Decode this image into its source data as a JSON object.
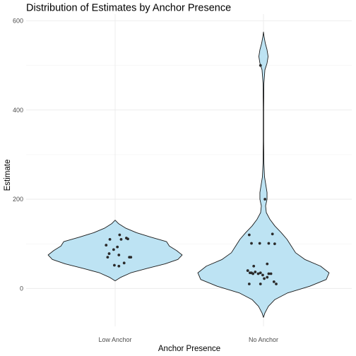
{
  "chart_data": {
    "type": "violin",
    "title": "Distribution of Estimates by Anchor Presence",
    "xlabel": "Anchor Presence",
    "ylabel": "Estimate",
    "categories": [
      "Low Anchor",
      "No Anchor"
    ],
    "ylim": [
      -85,
      615
    ],
    "yticks": [
      0,
      200,
      400,
      600
    ],
    "grid": true,
    "fill_color": "#bde3f3",
    "outline_color": "#1a1a1a",
    "point_color": "#2b2b2b",
    "violins": [
      {
        "category": "Low Anchor",
        "profile": [
          {
            "y": 17,
            "w": 0.0
          },
          {
            "y": 25,
            "w": 0.08
          },
          {
            "y": 35,
            "w": 0.22
          },
          {
            "y": 45,
            "w": 0.45
          },
          {
            "y": 55,
            "w": 0.7
          },
          {
            "y": 65,
            "w": 0.88
          },
          {
            "y": 75,
            "w": 0.94
          },
          {
            "y": 85,
            "w": 0.86
          },
          {
            "y": 95,
            "w": 0.76
          },
          {
            "y": 105,
            "w": 0.72
          },
          {
            "y": 115,
            "w": 0.5
          },
          {
            "y": 125,
            "w": 0.3
          },
          {
            "y": 135,
            "w": 0.15
          },
          {
            "y": 145,
            "w": 0.05
          },
          {
            "y": 153,
            "w": 0.0
          }
        ]
      },
      {
        "category": "No Anchor",
        "profile": [
          {
            "y": -65,
            "w": 0.0
          },
          {
            "y": -55,
            "w": 0.02
          },
          {
            "y": -40,
            "w": 0.07
          },
          {
            "y": -25,
            "w": 0.16
          },
          {
            "y": -10,
            "w": 0.34
          },
          {
            "y": 5,
            "w": 0.65
          },
          {
            "y": 20,
            "w": 0.88
          },
          {
            "y": 35,
            "w": 0.92
          },
          {
            "y": 50,
            "w": 0.8
          },
          {
            "y": 65,
            "w": 0.58
          },
          {
            "y": 80,
            "w": 0.45
          },
          {
            "y": 95,
            "w": 0.39
          },
          {
            "y": 110,
            "w": 0.33
          },
          {
            "y": 125,
            "w": 0.25
          },
          {
            "y": 140,
            "w": 0.16
          },
          {
            "y": 155,
            "w": 0.09
          },
          {
            "y": 170,
            "w": 0.04
          },
          {
            "y": 185,
            "w": 0.03
          },
          {
            "y": 200,
            "w": 0.05
          },
          {
            "y": 215,
            "w": 0.05
          },
          {
            "y": 230,
            "w": 0.035
          },
          {
            "y": 250,
            "w": 0.015
          },
          {
            "y": 280,
            "w": 0.006
          },
          {
            "y": 330,
            "w": 0.003
          },
          {
            "y": 400,
            "w": 0.003
          },
          {
            "y": 460,
            "w": 0.006
          },
          {
            "y": 490,
            "w": 0.02
          },
          {
            "y": 505,
            "w": 0.05
          },
          {
            "y": 520,
            "w": 0.065
          },
          {
            "y": 535,
            "w": 0.05
          },
          {
            "y": 550,
            "w": 0.025
          },
          {
            "y": 565,
            "w": 0.008
          },
          {
            "y": 575,
            "w": 0.0
          }
        ]
      }
    ],
    "points": [
      {
        "category": "Low Anchor",
        "jitter": -0.12,
        "y": 97
      },
      {
        "category": "Low Anchor",
        "jitter": -0.07,
        "y": 110
      },
      {
        "category": "Low Anchor",
        "jitter": -0.02,
        "y": 87
      },
      {
        "category": "Low Anchor",
        "jitter": 0.06,
        "y": 120
      },
      {
        "category": "Low Anchor",
        "jitter": 0.15,
        "y": 113
      },
      {
        "category": "Low Anchor",
        "jitter": 0.17,
        "y": 111
      },
      {
        "category": "Low Anchor",
        "jitter": -0.1,
        "y": 70
      },
      {
        "category": "Low Anchor",
        "jitter": -0.08,
        "y": 78
      },
      {
        "category": "Low Anchor",
        "jitter": 0.03,
        "y": 93
      },
      {
        "category": "Low Anchor",
        "jitter": 0.05,
        "y": 75
      },
      {
        "category": "Low Anchor",
        "jitter": 0.19,
        "y": 70
      },
      {
        "category": "Low Anchor",
        "jitter": 0.21,
        "y": 70
      },
      {
        "category": "Low Anchor",
        "jitter": -0.01,
        "y": 52
      },
      {
        "category": "Low Anchor",
        "jitter": 0.05,
        "y": 50
      },
      {
        "category": "Low Anchor",
        "jitter": 0.12,
        "y": 57
      },
      {
        "category": "Low Anchor",
        "jitter": 0.08,
        "y": 110
      },
      {
        "category": "No Anchor",
        "jitter": -0.04,
        "y": 500
      },
      {
        "category": "No Anchor",
        "jitter": 0.02,
        "y": 200
      },
      {
        "category": "No Anchor",
        "jitter": -0.19,
        "y": 120
      },
      {
        "category": "No Anchor",
        "jitter": -0.16,
        "y": 101
      },
      {
        "category": "No Anchor",
        "jitter": 0.12,
        "y": 122
      },
      {
        "category": "No Anchor",
        "jitter": 0.07,
        "y": 101
      },
      {
        "category": "No Anchor",
        "jitter": 0.15,
        "y": 100
      },
      {
        "category": "No Anchor",
        "jitter": -0.05,
        "y": 101
      },
      {
        "category": "No Anchor",
        "jitter": -0.21,
        "y": 40
      },
      {
        "category": "No Anchor",
        "jitter": -0.18,
        "y": 35
      },
      {
        "category": "No Anchor",
        "jitter": -0.16,
        "y": 35
      },
      {
        "category": "No Anchor",
        "jitter": -0.13,
        "y": 50
      },
      {
        "category": "No Anchor",
        "jitter": -0.11,
        "y": 37
      },
      {
        "category": "No Anchor",
        "jitter": -0.07,
        "y": 33
      },
      {
        "category": "No Anchor",
        "jitter": -0.04,
        "y": 35
      },
      {
        "category": "No Anchor",
        "jitter": -0.01,
        "y": 30
      },
      {
        "category": "No Anchor",
        "jitter": 0.01,
        "y": 22
      },
      {
        "category": "No Anchor",
        "jitter": 0.05,
        "y": 25
      },
      {
        "category": "No Anchor",
        "jitter": 0.07,
        "y": 33
      },
      {
        "category": "No Anchor",
        "jitter": 0.05,
        "y": 55
      },
      {
        "category": "No Anchor",
        "jitter": 0.1,
        "y": 33
      },
      {
        "category": "No Anchor",
        "jitter": 0.14,
        "y": 15
      },
      {
        "category": "No Anchor",
        "jitter": 0.17,
        "y": 10
      },
      {
        "category": "No Anchor",
        "jitter": -0.19,
        "y": 10
      },
      {
        "category": "No Anchor",
        "jitter": -0.04,
        "y": 10
      },
      {
        "category": "No Anchor",
        "jitter": -0.14,
        "y": 33
      }
    ]
  }
}
